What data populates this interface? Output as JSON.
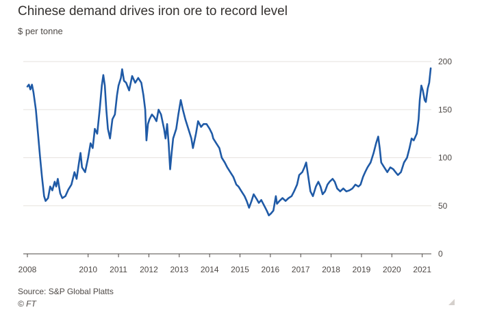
{
  "header": {
    "title": "Chinese demand drives iron ore to record level",
    "subtitle": "$ per tonne"
  },
  "footer": {
    "source": "Source: S&P Global Platts",
    "credit": "© FT"
  },
  "colors": {
    "line": "#1f5aa6",
    "grid": "#e6e2de",
    "axis": "#4d4845",
    "text": "#33302e"
  },
  "chart_data": {
    "type": "line",
    "title": "Chinese demand drives iron ore to record level",
    "ylabel": "$ per tonne",
    "ylim": [
      0,
      200
    ],
    "xlim": [
      2008.0,
      2021.3
    ],
    "yticks": [
      0,
      50,
      100,
      150,
      200
    ],
    "xticks": [
      {
        "value": 2008,
        "label": "2008"
      },
      {
        "value": 2010,
        "label": "2010"
      },
      {
        "value": 2011,
        "label": "2011"
      },
      {
        "value": 2012,
        "label": "2012"
      },
      {
        "value": 2013,
        "label": "2013"
      },
      {
        "value": 2014,
        "label": "2014"
      },
      {
        "value": 2015,
        "label": "2015"
      },
      {
        "value": 2016,
        "label": "2016"
      },
      {
        "value": 2017,
        "label": "2017"
      },
      {
        "value": 2018,
        "label": "2018"
      },
      {
        "value": 2019,
        "label": "2019"
      },
      {
        "value": 2020,
        "label": "2020"
      },
      {
        "value": 2021,
        "label": "2021"
      }
    ],
    "grid": "horizontal",
    "y_axis_position": "right",
    "series": [
      {
        "points": [
          [
            2008.0,
            174
          ],
          [
            2008.05,
            176
          ],
          [
            2008.1,
            171
          ],
          [
            2008.15,
            176
          ],
          [
            2008.2,
            168
          ],
          [
            2008.28,
            150
          ],
          [
            2008.35,
            125
          ],
          [
            2008.42,
            100
          ],
          [
            2008.48,
            80
          ],
          [
            2008.55,
            60
          ],
          [
            2008.6,
            55
          ],
          [
            2008.68,
            58
          ],
          [
            2008.75,
            70
          ],
          [
            2008.82,
            66
          ],
          [
            2008.9,
            75
          ],
          [
            2008.95,
            70
          ],
          [
            2009.0,
            78
          ],
          [
            2009.08,
            63
          ],
          [
            2009.15,
            58
          ],
          [
            2009.25,
            60
          ],
          [
            2009.35,
            67
          ],
          [
            2009.45,
            72
          ],
          [
            2009.55,
            85
          ],
          [
            2009.62,
            78
          ],
          [
            2009.7,
            95
          ],
          [
            2009.75,
            105
          ],
          [
            2009.8,
            90
          ],
          [
            2009.9,
            85
          ],
          [
            2010.0,
            100
          ],
          [
            2010.08,
            115
          ],
          [
            2010.15,
            110
          ],
          [
            2010.22,
            130
          ],
          [
            2010.3,
            125
          ],
          [
            2010.38,
            150
          ],
          [
            2010.45,
            175
          ],
          [
            2010.5,
            186
          ],
          [
            2010.55,
            175
          ],
          [
            2010.6,
            150
          ],
          [
            2010.65,
            130
          ],
          [
            2010.72,
            120
          ],
          [
            2010.8,
            140
          ],
          [
            2010.88,
            145
          ],
          [
            2010.95,
            165
          ],
          [
            2011.0,
            175
          ],
          [
            2011.08,
            183
          ],
          [
            2011.12,
            192
          ],
          [
            2011.18,
            180
          ],
          [
            2011.25,
            178
          ],
          [
            2011.35,
            170
          ],
          [
            2011.45,
            185
          ],
          [
            2011.55,
            178
          ],
          [
            2011.65,
            183
          ],
          [
            2011.75,
            178
          ],
          [
            2011.82,
            165
          ],
          [
            2011.88,
            150
          ],
          [
            2011.92,
            118
          ],
          [
            2011.97,
            135
          ],
          [
            2012.02,
            140
          ],
          [
            2012.1,
            145
          ],
          [
            2012.18,
            142
          ],
          [
            2012.25,
            138
          ],
          [
            2012.32,
            150
          ],
          [
            2012.4,
            145
          ],
          [
            2012.5,
            130
          ],
          [
            2012.55,
            120
          ],
          [
            2012.6,
            135
          ],
          [
            2012.65,
            115
          ],
          [
            2012.7,
            88
          ],
          [
            2012.75,
            105
          ],
          [
            2012.8,
            120
          ],
          [
            2012.9,
            130
          ],
          [
            2012.97,
            145
          ],
          [
            2013.05,
            160
          ],
          [
            2013.12,
            150
          ],
          [
            2013.2,
            140
          ],
          [
            2013.3,
            130
          ],
          [
            2013.4,
            120
          ],
          [
            2013.45,
            110
          ],
          [
            2013.55,
            125
          ],
          [
            2013.62,
            138
          ],
          [
            2013.72,
            132
          ],
          [
            2013.8,
            135
          ],
          [
            2013.9,
            135
          ],
          [
            2014.0,
            130
          ],
          [
            2014.08,
            125
          ],
          [
            2014.12,
            120
          ],
          [
            2014.22,
            115
          ],
          [
            2014.32,
            110
          ],
          [
            2014.4,
            100
          ],
          [
            2014.5,
            95
          ],
          [
            2014.58,
            90
          ],
          [
            2014.68,
            85
          ],
          [
            2014.78,
            80
          ],
          [
            2014.88,
            72
          ],
          [
            2014.95,
            70
          ],
          [
            2015.05,
            65
          ],
          [
            2015.15,
            60
          ],
          [
            2015.22,
            55
          ],
          [
            2015.3,
            48
          ],
          [
            2015.38,
            55
          ],
          [
            2015.45,
            62
          ],
          [
            2015.55,
            57
          ],
          [
            2015.62,
            53
          ],
          [
            2015.7,
            56
          ],
          [
            2015.8,
            50
          ],
          [
            2015.88,
            45
          ],
          [
            2015.95,
            40
          ],
          [
            2016.02,
            42
          ],
          [
            2016.1,
            45
          ],
          [
            2016.18,
            60
          ],
          [
            2016.22,
            52
          ],
          [
            2016.3,
            55
          ],
          [
            2016.4,
            58
          ],
          [
            2016.5,
            55
          ],
          [
            2016.6,
            58
          ],
          [
            2016.7,
            60
          ],
          [
            2016.78,
            65
          ],
          [
            2016.88,
            72
          ],
          [
            2016.95,
            82
          ],
          [
            2017.05,
            85
          ],
          [
            2017.12,
            90
          ],
          [
            2017.18,
            95
          ],
          [
            2017.25,
            80
          ],
          [
            2017.32,
            65
          ],
          [
            2017.4,
            60
          ],
          [
            2017.5,
            70
          ],
          [
            2017.58,
            75
          ],
          [
            2017.65,
            70
          ],
          [
            2017.72,
            62
          ],
          [
            2017.8,
            65
          ],
          [
            2017.88,
            72
          ],
          [
            2017.95,
            75
          ],
          [
            2018.05,
            78
          ],
          [
            2018.12,
            75
          ],
          [
            2018.2,
            68
          ],
          [
            2018.3,
            65
          ],
          [
            2018.4,
            68
          ],
          [
            2018.5,
            65
          ],
          [
            2018.6,
            66
          ],
          [
            2018.7,
            68
          ],
          [
            2018.8,
            72
          ],
          [
            2018.9,
            70
          ],
          [
            2018.97,
            72
          ],
          [
            2019.05,
            80
          ],
          [
            2019.12,
            85
          ],
          [
            2019.2,
            90
          ],
          [
            2019.3,
            95
          ],
          [
            2019.4,
            105
          ],
          [
            2019.48,
            115
          ],
          [
            2019.55,
            122
          ],
          [
            2019.6,
            110
          ],
          [
            2019.65,
            95
          ],
          [
            2019.75,
            90
          ],
          [
            2019.85,
            85
          ],
          [
            2019.95,
            90
          ],
          [
            2020.05,
            88
          ],
          [
            2020.12,
            85
          ],
          [
            2020.2,
            82
          ],
          [
            2020.3,
            85
          ],
          [
            2020.4,
            95
          ],
          [
            2020.5,
            100
          ],
          [
            2020.58,
            110
          ],
          [
            2020.65,
            120
          ],
          [
            2020.72,
            118
          ],
          [
            2020.82,
            125
          ],
          [
            2020.88,
            140
          ],
          [
            2020.92,
            160
          ],
          [
            2020.97,
            175
          ],
          [
            2021.02,
            170
          ],
          [
            2021.08,
            160
          ],
          [
            2021.12,
            158
          ],
          [
            2021.18,
            172
          ],
          [
            2021.23,
            178
          ],
          [
            2021.28,
            193
          ]
        ]
      }
    ]
  }
}
